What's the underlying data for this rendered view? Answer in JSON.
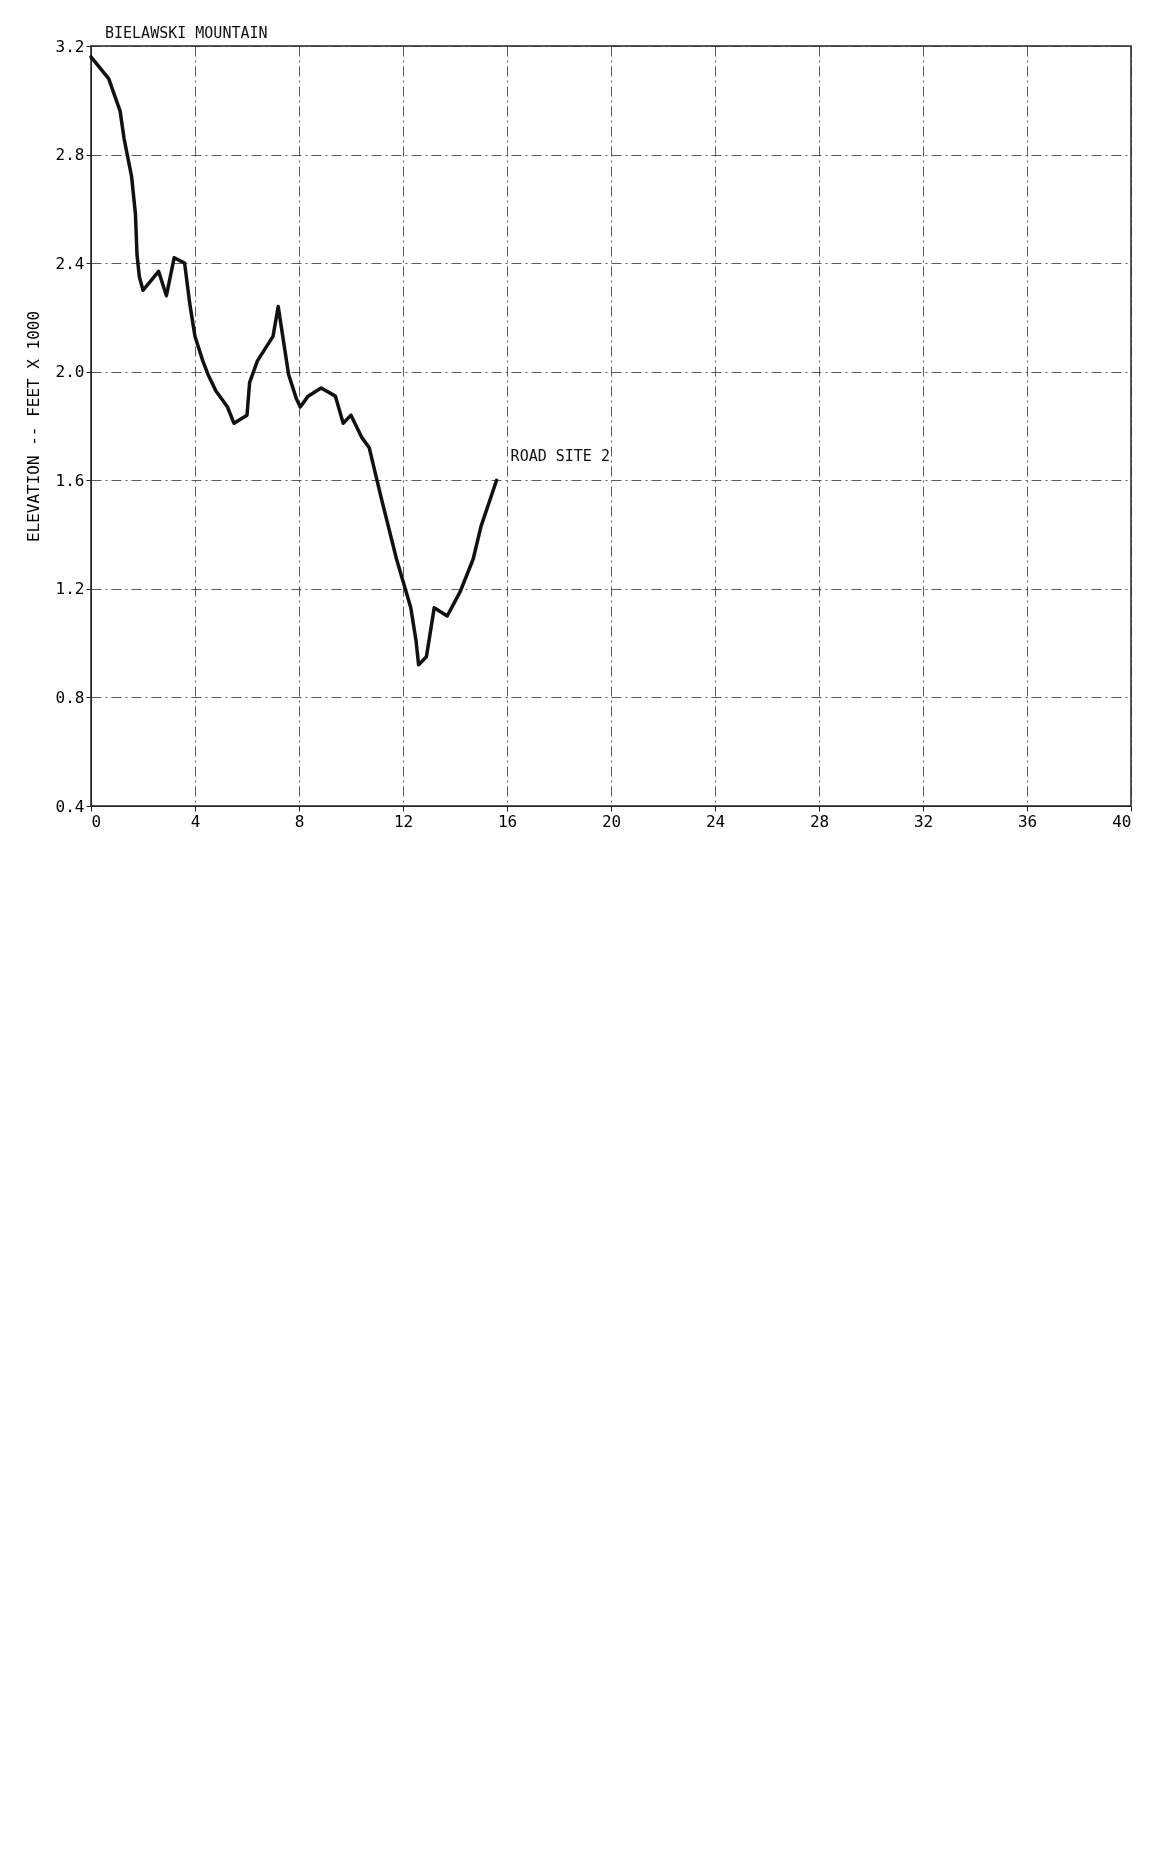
{
  "chart_data": {
    "type": "line",
    "ylabel": "ELEVATION -- FEET X 1000",
    "x": [
      0,
      0.68,
      1.12,
      1.27,
      1.56,
      1.71,
      1.77,
      1.86,
      2.0,
      2.6,
      2.9,
      3.2,
      3.6,
      3.8,
      4.0,
      4.3,
      4.5,
      4.8,
      5.25,
      5.5,
      6.0,
      6.1,
      6.4,
      7.0,
      7.2,
      7.6,
      7.9,
      8.05,
      8.35,
      8.85,
      9.4,
      9.7,
      10.0,
      10.4,
      10.7,
      11.15,
      11.75,
      12.3,
      12.5,
      12.6,
      12.9,
      13.1,
      13.2,
      13.7,
      14.2,
      14.7,
      15.0,
      15.6
    ],
    "series": [
      {
        "color": "#111111",
        "values": [
          3.16,
          3.08,
          2.96,
          2.86,
          2.72,
          2.58,
          2.43,
          2.35,
          2.3,
          2.37,
          2.28,
          2.42,
          2.4,
          2.25,
          2.13,
          2.04,
          1.99,
          1.93,
          1.87,
          1.81,
          1.84,
          1.96,
          2.04,
          2.13,
          2.24,
          1.99,
          1.9,
          1.87,
          1.91,
          1.94,
          1.91,
          1.81,
          1.84,
          1.76,
          1.72,
          1.54,
          1.31,
          1.13,
          1.01,
          0.92,
          0.95,
          1.07,
          1.13,
          1.1,
          1.19,
          1.31,
          1.43,
          1.6
        ]
      }
    ],
    "xlim": [
      0,
      40
    ],
    "xticks": [
      0,
      4,
      8,
      12,
      16,
      20,
      24,
      28,
      32,
      36,
      40
    ],
    "ylim": [
      0.4,
      3.2
    ],
    "yticks": [
      0.4,
      0.8,
      1.2,
      1.6,
      {
        "value": 2,
        "label": "2.0"
      },
      2.4,
      2.8,
      3.2
    ],
    "grid": true,
    "marker": "none",
    "line_style": "solid",
    "annotations": [
      {
        "text": "BIELAWSKI MOUNTAIN",
        "x": 0,
        "y": 3.16
      },
      {
        "text": "ROAD SITE 2",
        "x": 15.6,
        "y": 1.6
      }
    ]
  }
}
